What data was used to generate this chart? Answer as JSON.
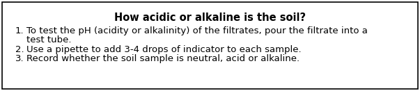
{
  "title": "How acidic or alkaline is the soil?",
  "item1_num": "1.",
  "item1_line1": "To test the pH (acidity or alkalinity) of the filtrates, pour the filtrate into a",
  "item1_line2": "test tube.",
  "item2_num": "2.",
  "item2_text": "Use a pipette to add 3-4 drops of indicator to each sample.",
  "item3_num": "3.",
  "item3_text": "Record whether the soil sample is neutral, acid or alkaline.",
  "title_fontsize": 10.5,
  "body_fontsize": 9.5,
  "bg_color": "#ffffff",
  "border_color": "#000000",
  "text_color": "#000000",
  "title_font_weight": "bold",
  "fig_width": 6.03,
  "fig_height": 1.31,
  "dpi": 100
}
